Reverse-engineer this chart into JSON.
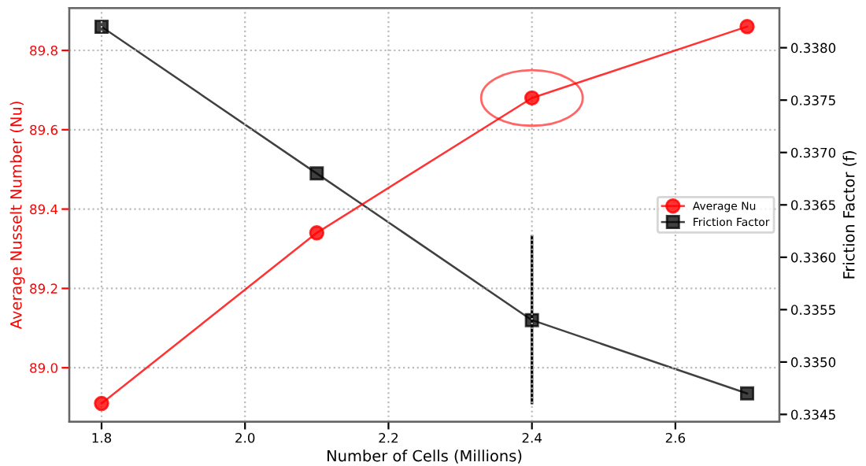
{
  "chart_data": {
    "type": "line",
    "xlabel": "Number of Cells (Millions)",
    "ylabel": "Average Nusselt Number (Nu)",
    "y2label": "Friction Factor (f)",
    "x": [
      1.8,
      2.1,
      2.4,
      2.7
    ],
    "series": [
      {
        "name": "Average Nu",
        "color": "#ff0000",
        "values": [
          88.91,
          89.34,
          89.68,
          89.86
        ],
        "marker": "circle"
      },
      {
        "name": "Friction Factor",
        "color": "#000000",
        "values": [
          0.3382,
          0.3368,
          0.3354,
          0.3347
        ],
        "marker": "square",
        "axis": "y2",
        "errors": [
          null,
          null,
          [
            0.33461,
            0.3362
          ],
          null
        ]
      }
    ],
    "xlim": [
      1.755,
      2.745
    ],
    "xticks": [
      {
        "value": 1.8,
        "label": "1.8"
      },
      {
        "value": 2.0,
        "label": "2.0"
      },
      {
        "value": 2.2,
        "label": "2.2"
      },
      {
        "value": 2.4,
        "label": "2.4"
      },
      {
        "value": 2.6,
        "label": "2.6"
      }
    ],
    "ylim": [
      88.864,
      89.907
    ],
    "yticks": [
      {
        "value": 89.0,
        "label": "89.0"
      },
      {
        "value": 89.2,
        "label": "89.2"
      },
      {
        "value": 89.4,
        "label": "89.4"
      },
      {
        "value": 89.6,
        "label": "89.6"
      },
      {
        "value": 89.8,
        "label": "89.8"
      }
    ],
    "y2lim": [
      0.33443,
      0.33838
    ],
    "y2ticks": [
      {
        "value": 0.3345,
        "label": "0.3345"
      },
      {
        "value": 0.335,
        "label": "0.3350"
      },
      {
        "value": 0.3355,
        "label": "0.3355"
      },
      {
        "value": 0.336,
        "label": "0.3360"
      },
      {
        "value": 0.3365,
        "label": "0.3365"
      },
      {
        "value": 0.337,
        "label": "0.3370"
      },
      {
        "value": 0.3375,
        "label": "0.3375"
      },
      {
        "value": 0.338,
        "label": "0.3380"
      }
    ],
    "grid": true,
    "legend": "center right",
    "line_style": "solid"
  }
}
